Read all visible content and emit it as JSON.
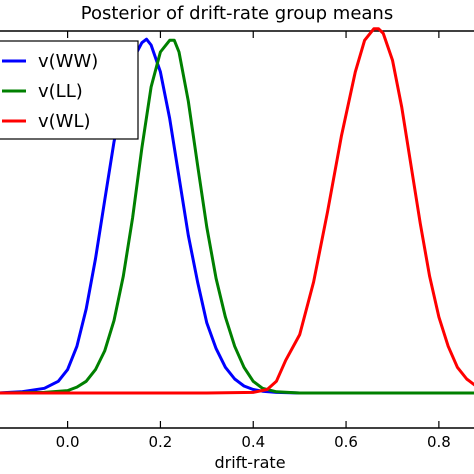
{
  "chart_data": {
    "type": "line",
    "title": "Posterior of drift-rate group means",
    "xlabel": "drift-rate",
    "ylabel": "",
    "xlim": [
      -0.15,
      0.88
    ],
    "ylim": [
      -0.3,
      3.1
    ],
    "grid": false,
    "legend_placement": "top-left",
    "x_ticks": [
      {
        "value": 0.0,
        "label": "0.0"
      },
      {
        "value": 0.2,
        "label": "0.2"
      },
      {
        "value": 0.4,
        "label": "0.4"
      },
      {
        "value": 0.6,
        "label": "0.6"
      },
      {
        "value": 0.8,
        "label": "0.8"
      }
    ],
    "series": [
      {
        "name": "v(WW)",
        "color": "#0000ff",
        "x": [
          -0.15,
          -0.1,
          -0.05,
          -0.02,
          0.0,
          0.02,
          0.04,
          0.06,
          0.08,
          0.1,
          0.12,
          0.14,
          0.16,
          0.17,
          0.18,
          0.2,
          0.22,
          0.24,
          0.26,
          0.28,
          0.3,
          0.32,
          0.34,
          0.36,
          0.38,
          0.4,
          0.42,
          0.45,
          0.5,
          0.88
        ],
        "y": [
          0.0,
          0.01,
          0.04,
          0.1,
          0.2,
          0.4,
          0.72,
          1.15,
          1.65,
          2.15,
          2.55,
          2.85,
          3.0,
          3.03,
          2.98,
          2.75,
          2.35,
          1.85,
          1.35,
          0.95,
          0.6,
          0.38,
          0.22,
          0.12,
          0.06,
          0.03,
          0.015,
          0.005,
          0.0,
          0.0
        ]
      },
      {
        "name": "v(LL)",
        "color": "#008000",
        "x": [
          -0.15,
          -0.05,
          0.0,
          0.02,
          0.04,
          0.06,
          0.08,
          0.1,
          0.12,
          0.14,
          0.16,
          0.18,
          0.2,
          0.22,
          0.23,
          0.24,
          0.26,
          0.28,
          0.3,
          0.32,
          0.34,
          0.36,
          0.38,
          0.4,
          0.42,
          0.45,
          0.5,
          0.88
        ],
        "y": [
          0.0,
          0.005,
          0.02,
          0.05,
          0.1,
          0.2,
          0.36,
          0.62,
          1.0,
          1.5,
          2.1,
          2.62,
          2.92,
          3.02,
          3.02,
          2.92,
          2.5,
          1.95,
          1.42,
          0.98,
          0.65,
          0.4,
          0.22,
          0.1,
          0.04,
          0.01,
          0.0,
          0.0
        ]
      },
      {
        "name": "v(WL)",
        "color": "#ff0000",
        "x": [
          -0.15,
          0.3,
          0.4,
          0.43,
          0.45,
          0.47,
          0.5,
          0.53,
          0.56,
          0.59,
          0.62,
          0.64,
          0.66,
          0.67,
          0.68,
          0.7,
          0.72,
          0.74,
          0.76,
          0.78,
          0.8,
          0.82,
          0.84,
          0.86,
          0.88
        ],
        "y": [
          0.0,
          0.0,
          0.005,
          0.03,
          0.1,
          0.28,
          0.5,
          0.95,
          1.55,
          2.2,
          2.75,
          3.02,
          3.12,
          3.12,
          3.08,
          2.85,
          2.45,
          1.95,
          1.45,
          1.0,
          0.65,
          0.4,
          0.22,
          0.12,
          0.06
        ]
      }
    ]
  }
}
